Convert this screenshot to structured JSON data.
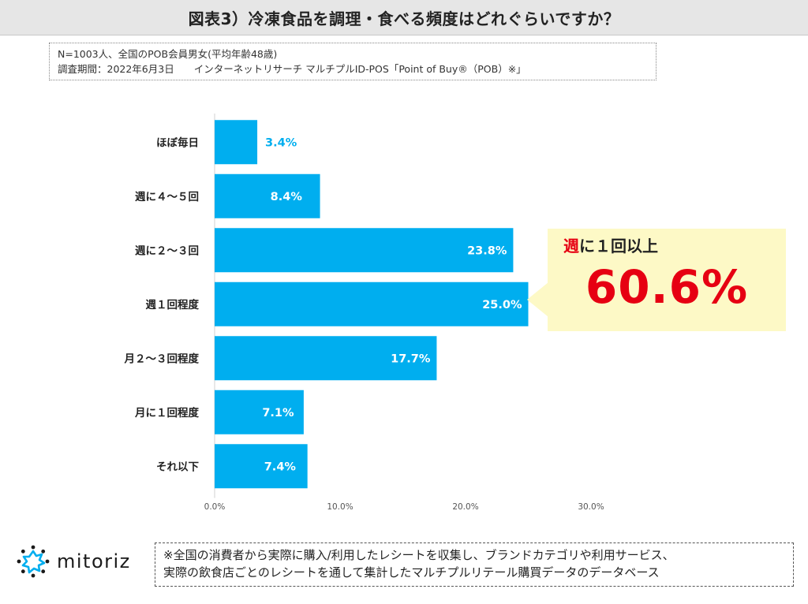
{
  "header": {
    "title": "図表3）冷凍食品を調理・食べる頻度はどれぐらいですか？"
  },
  "survey_info": {
    "line1": "N=1003人、全国のPOB会員男女(平均年齢48歳)",
    "line2": "調査期間：2022年6月3日　　インターネットリサーチ マルチプルID-POS「Point of Buy®（POB）※」"
  },
  "callout": {
    "label_highlight": "週",
    "label_rest": "に１回以上",
    "value": "60.6%"
  },
  "chart_data": {
    "type": "bar",
    "orientation": "horizontal",
    "categories": [
      "ほぼ毎日",
      "週に４～５回",
      "週に２～３回",
      "週１回程度",
      "月２～３回程度",
      "月に１回程度",
      "それ以下"
    ],
    "values": [
      3.4,
      8.4,
      23.8,
      25.0,
      17.7,
      7.1,
      7.4
    ],
    "data_labels": [
      "3.4%",
      "8.4%",
      "23.8%",
      "25.0%",
      "17.7%",
      "7.1%",
      "7.4%"
    ],
    "xlim": [
      0,
      30
    ],
    "x_ticks": [
      "0.0%",
      "10.0%",
      "20.0%",
      "30.0%"
    ],
    "x_tick_values": [
      0,
      10,
      20,
      30
    ],
    "bar_color": "#00aeef",
    "grid": false,
    "legend": "none"
  },
  "footer": {
    "logo_text": "mitoriz",
    "note_line1": "※全国の消費者から実際に購入/利用したレシートを収集し、ブランドカテゴリや利用サービス、",
    "note_line2": "実際の飲食店ごとのレシートを通して集計したマルチプルリテール購買データのデータベース"
  },
  "colors": {
    "accent_red": "#e60012",
    "bar_blue": "#00aeef",
    "callout_bg": "#fdf9c6"
  }
}
